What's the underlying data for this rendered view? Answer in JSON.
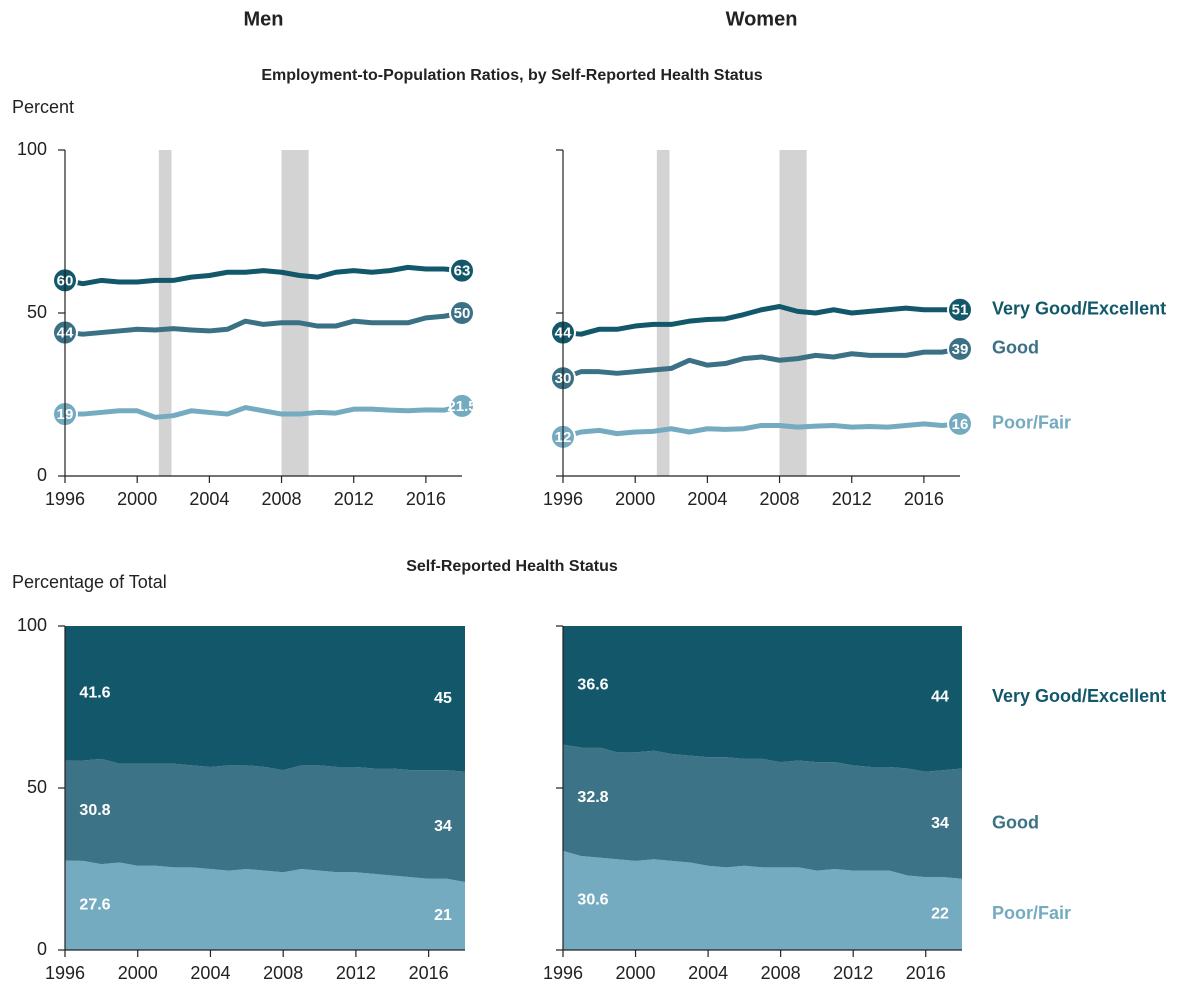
{
  "chart_data": [
    {
      "type": "line",
      "title": "Men",
      "subtitle": "Employment-to-Population Ratios, by Self-Reported Health Status",
      "ylabel": "Percent",
      "x": [
        1996,
        1997,
        1998,
        1999,
        2000,
        2001,
        2002,
        2003,
        2004,
        2005,
        2006,
        2007,
        2008,
        2009,
        2010,
        2011,
        2012,
        2013,
        2014,
        2015,
        2016,
        2017,
        2018
      ],
      "xlim": [
        1996,
        2018
      ],
      "xticks": [
        1996,
        2000,
        2004,
        2008,
        2012,
        2016
      ],
      "ylim": [
        0,
        100
      ],
      "yticks": [
        0,
        50,
        100
      ],
      "tick_labels": true,
      "shaded_periods": [
        [
          2001.2,
          2001.9
        ],
        [
          2008,
          2009.5
        ]
      ],
      "series": [
        {
          "color": "#74abc0",
          "values": [
            19,
            19,
            19.5,
            20,
            20,
            18,
            18.5,
            20,
            19.5,
            19,
            21,
            20,
            19,
            19,
            19.5,
            19.3,
            20.5,
            20.5,
            20.2,
            20,
            20.3,
            20.2,
            21.5
          ]
        },
        {
          "color": "#3b7184",
          "values": [
            44,
            43.5,
            44,
            44.5,
            45,
            44.8,
            45.2,
            44.8,
            44.5,
            45,
            47.5,
            46.5,
            47,
            47,
            46,
            46,
            47.5,
            47,
            47,
            47,
            48.5,
            49,
            50
          ]
        },
        {
          "color": "#12586a",
          "values": [
            60,
            59,
            60,
            59.5,
            59.5,
            60,
            60,
            61,
            61.5,
            62.5,
            62.5,
            63,
            62.5,
            61.5,
            61,
            62.5,
            63,
            62.5,
            63,
            64,
            63.5,
            63.5,
            63
          ]
        }
      ]
    },
    {
      "type": "line",
      "title": "Women",
      "x": [
        1996,
        1997,
        1998,
        1999,
        2000,
        2001,
        2002,
        2003,
        2004,
        2005,
        2006,
        2007,
        2008,
        2009,
        2010,
        2011,
        2012,
        2013,
        2014,
        2015,
        2016,
        2017,
        2018
      ],
      "xlim": [
        1996,
        2018
      ],
      "xticks": [
        1996,
        2000,
        2004,
        2008,
        2012,
        2016
      ],
      "ylim": [
        0,
        100
      ],
      "yticks": [
        0,
        50,
        100
      ],
      "tick_labels": false,
      "shaded_periods": [
        [
          2001.2,
          2001.9
        ],
        [
          2008,
          2009.5
        ]
      ],
      "series": [
        {
          "name": "Poor/Fair",
          "color": "#74abc0",
          "values": [
            12,
            13.5,
            14,
            13,
            13.5,
            13.7,
            14.5,
            13.5,
            14.5,
            14.3,
            14.5,
            15.5,
            15.5,
            15,
            15.3,
            15.5,
            15,
            15.2,
            15,
            15.5,
            16,
            15.5,
            16
          ]
        },
        {
          "name": "Good",
          "color": "#3b7184",
          "values": [
            30,
            32,
            32,
            31.5,
            32,
            32.5,
            33,
            35.5,
            34,
            34.5,
            36,
            36.5,
            35.5,
            36,
            37,
            36.5,
            37.5,
            37,
            37,
            37,
            38,
            38,
            39
          ]
        },
        {
          "name": "Very Good/Excellent",
          "color": "#12586a",
          "values": [
            44,
            43.5,
            45,
            45,
            46,
            46.5,
            46.5,
            47.5,
            48,
            48.2,
            49.5,
            51,
            52,
            50.5,
            50,
            51,
            50,
            50.5,
            51,
            51.5,
            51,
            51,
            51
          ]
        }
      ]
    },
    {
      "type": "area",
      "subtitle": "Self-Reported Health Status",
      "ylabel": "Percentage of Total",
      "x": [
        1996,
        1997,
        1998,
        1999,
        2000,
        2001,
        2002,
        2003,
        2004,
        2005,
        2006,
        2007,
        2008,
        2009,
        2010,
        2011,
        2012,
        2013,
        2014,
        2015,
        2016,
        2017,
        2018
      ],
      "xlim": [
        1996,
        2018
      ],
      "xticks": [
        1996,
        2000,
        2004,
        2008,
        2012,
        2016
      ],
      "ylim": [
        0,
        100
      ],
      "yticks": [
        0,
        50,
        100
      ],
      "tick_labels": true,
      "series": [
        {
          "color": "#74abc0",
          "values": [
            27.6,
            27.5,
            26.5,
            27,
            26,
            26,
            25.5,
            25.5,
            25,
            24.5,
            25,
            24.5,
            24,
            25,
            24.5,
            24,
            24,
            23.5,
            23,
            22.5,
            22,
            22,
            21
          ]
        },
        {
          "color": "#3d7386",
          "values": [
            30.8,
            31,
            32.5,
            30.5,
            31.5,
            31.5,
            32,
            31.5,
            31.5,
            32.5,
            32,
            32,
            31.5,
            32,
            32.5,
            32.5,
            32.5,
            32.5,
            33,
            33,
            33.5,
            33.5,
            34
          ]
        },
        {
          "color": "#12586a",
          "values": [
            41.6,
            41.5,
            41,
            42.5,
            42.5,
            42.5,
            42.5,
            43,
            43.5,
            43,
            43,
            43.5,
            44.5,
            43,
            43,
            43.5,
            43.5,
            44,
            44,
            44.5,
            44.5,
            44.5,
            45
          ]
        }
      ]
    },
    {
      "type": "area",
      "x": [
        1996,
        1997,
        1998,
        1999,
        2000,
        2001,
        2002,
        2003,
        2004,
        2005,
        2006,
        2007,
        2008,
        2009,
        2010,
        2011,
        2012,
        2013,
        2014,
        2015,
        2016,
        2017,
        2018
      ],
      "xlim": [
        1996,
        2018
      ],
      "xticks": [
        1996,
        2000,
        2004,
        2008,
        2012,
        2016
      ],
      "ylim": [
        0,
        100
      ],
      "yticks": [
        0,
        50,
        100
      ],
      "tick_labels": false,
      "series": [
        {
          "name": "Poor/Fair",
          "color": "#74abc0",
          "values": [
            30.6,
            29,
            28.5,
            28,
            27.5,
            28,
            27.5,
            27,
            26,
            25.5,
            26,
            25.5,
            25.5,
            25.5,
            24.5,
            25,
            24.5,
            24.5,
            24.5,
            23,
            22.5,
            22.5,
            22
          ]
        },
        {
          "name": "Good",
          "color": "#3d7386",
          "values": [
            32.8,
            33.5,
            34,
            33,
            33.5,
            33.5,
            33,
            33,
            33.5,
            34,
            33,
            33.5,
            32.5,
            33,
            33.5,
            33,
            32.5,
            32,
            32,
            33,
            32.5,
            33,
            34
          ]
        },
        {
          "name": "Very Good/Excellent",
          "color": "#12586a",
          "values": [
            36.6,
            37.5,
            37.5,
            39,
            39,
            38.5,
            39.5,
            40,
            40.5,
            40.5,
            41,
            41,
            42,
            41.5,
            42,
            42,
            43,
            43.5,
            43.5,
            44,
            45,
            44.5,
            44
          ]
        }
      ]
    }
  ]
}
